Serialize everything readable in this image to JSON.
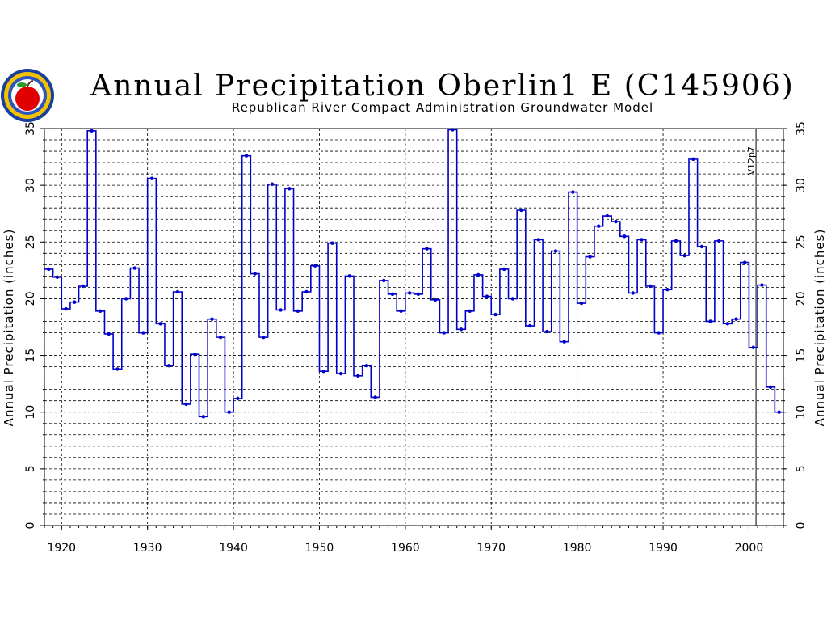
{
  "chart_data": {
    "type": "line",
    "style": "step",
    "title": "Annual Precipitation Oberlin1 E (C145906)",
    "subtitle": "Republican River Compact Administration Groundwater Model",
    "xlabel": "",
    "ylabel": "Annual Precipitation (inches)",
    "ylabel_right": "Annual Precipitation (inches)",
    "xlim": [
      1918,
      2004
    ],
    "ylim": [
      0,
      35
    ],
    "x_ticks": [
      1920,
      1930,
      1940,
      1950,
      1960,
      1970,
      1980,
      1990,
      2000
    ],
    "y_ticks": [
      0,
      5,
      10,
      15,
      20,
      25,
      30,
      35
    ],
    "grid": true,
    "colors": {
      "series": "#0000cc",
      "grid": "#000000",
      "marker_line": "#000000"
    },
    "annotations": [
      {
        "text": "V12p7",
        "x": 2001
      }
    ],
    "series": [
      {
        "x": [
          1918,
          1919,
          1920,
          1921,
          1922,
          1923,
          1924,
          1925,
          1926,
          1927,
          1928,
          1929,
          1930,
          1931,
          1932,
          1933,
          1934,
          1935,
          1936,
          1937,
          1938,
          1939,
          1940,
          1941,
          1942,
          1943,
          1944,
          1945,
          1946,
          1947,
          1948,
          1949,
          1950,
          1951,
          1952,
          1953,
          1954,
          1955,
          1956,
          1957,
          1958,
          1959,
          1960,
          1961,
          1962,
          1963,
          1964,
          1965,
          1966,
          1967,
          1968,
          1969,
          1970,
          1971,
          1972,
          1973,
          1974,
          1975,
          1976,
          1977,
          1978,
          1979,
          1980,
          1981,
          1982,
          1983,
          1984,
          1985,
          1986,
          1987,
          1988,
          1989,
          1990,
          1991,
          1992,
          1993,
          1994,
          1995,
          1996,
          1997,
          1998,
          1999,
          2000,
          2001,
          2002,
          2003
        ],
        "values": [
          22.6,
          21.9,
          19.1,
          19.7,
          21.1,
          34.8,
          18.9,
          16.9,
          13.8,
          20.0,
          22.7,
          17.0,
          30.6,
          17.8,
          14.1,
          20.6,
          10.7,
          15.1,
          9.6,
          18.2,
          16.6,
          10.0,
          11.2,
          32.6,
          22.2,
          16.6,
          30.1,
          19.0,
          29.7,
          18.9,
          20.6,
          22.9,
          13.6,
          24.9,
          13.4,
          22.0,
          13.2,
          14.1,
          11.3,
          21.6,
          20.4,
          18.9,
          20.5,
          20.4,
          24.4,
          19.9,
          17.0,
          34.9,
          17.3,
          18.9,
          22.1,
          20.2,
          18.6,
          22.6,
          20.0,
          27.8,
          17.6,
          25.2,
          17.1,
          24.2,
          16.2,
          29.4,
          19.6,
          23.7,
          26.4,
          27.3,
          26.8,
          25.5,
          20.5,
          25.2,
          21.1,
          17.0,
          20.8,
          25.1,
          23.8,
          32.3,
          24.6,
          18.0,
          25.1,
          17.8,
          18.2,
          23.2,
          15.7,
          21.2,
          12.2,
          10.0
        ]
      }
    ]
  }
}
